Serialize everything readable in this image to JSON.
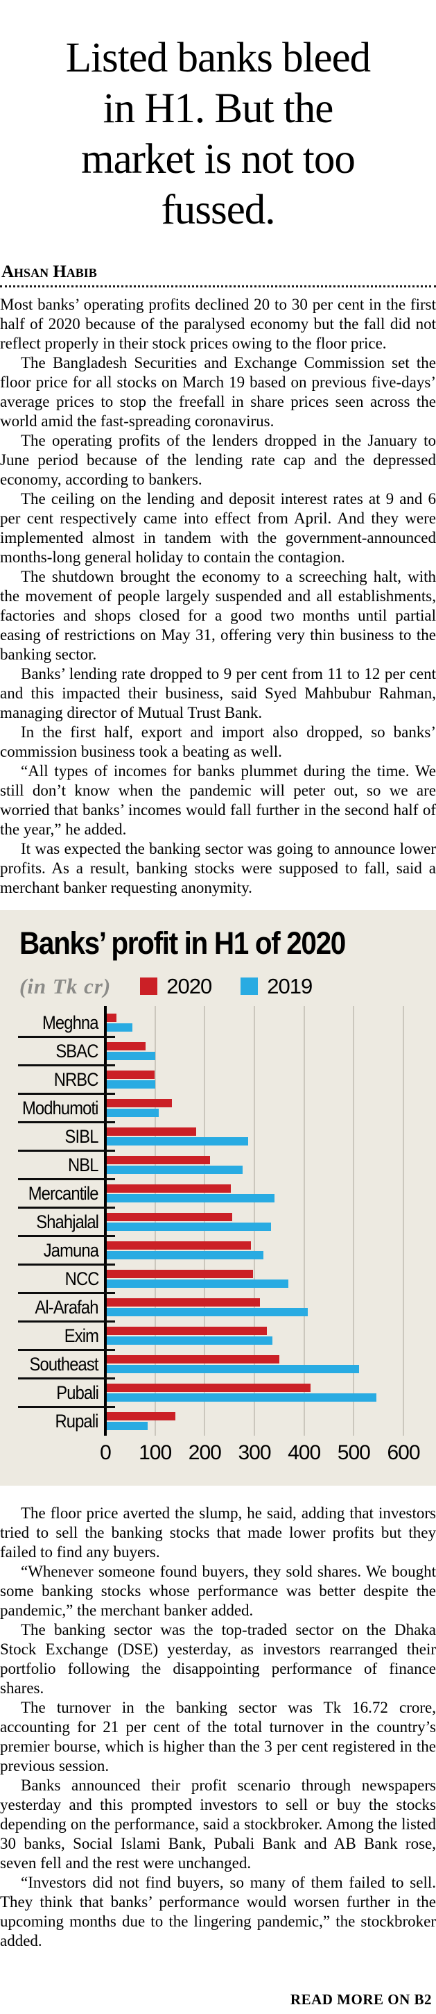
{
  "article": {
    "headline_lines": [
      "Listed banks bleed",
      "in H1. But the",
      "market is not too",
      "fussed."
    ],
    "byline": "Ahsan Habib",
    "paragraphs_before_chart": [
      "Most banks’ operating profits declined 20 to 30 per cent in the first half of 2020 because of the paralysed economy but the fall did not reflect properly in their stock prices owing to the floor price.",
      "The Bangladesh Securities and Exchange Commission set the floor price for all stocks on March 19 based on previous five-days’ average prices to stop the freefall in share prices seen across the world amid the fast-spreading coronavirus.",
      "The operating profits of the lenders dropped in the January to June period because of the lending rate cap and the depressed economy, according to bankers.",
      "The ceiling on the lending and deposit interest rates at 9 and 6 per cent respectively came into effect from April. And they were implemented almost in tandem with the government-announced months-long general holiday to contain the contagion.",
      "The shutdown brought the economy to a screeching halt, with the movement of people largely suspended and all establishments, factories and shops closed for a good two months until partial easing of restrictions on May 31, offering very thin business to the banking sector.",
      "Banks’ lending rate dropped to 9 per cent from 11 to 12 per cent and this impacted their business, said Syed Mahbubur Rahman, managing director of Mutual Trust Bank.",
      "In the first half, export and import also dropped, so banks’ commission business took a beating as well.",
      "“All types of incomes for banks plummet during the time. We still don’t know when the pandemic will peter out, so we are worried that banks’ incomes would fall further in the second half of the year,” he added.",
      "It was expected the banking sector was going to announce lower profits. As a result, banking stocks were supposed to fall, said a merchant banker requesting anonymity."
    ],
    "paragraphs_after_chart": [
      "The floor price averted the slump, he said, adding that investors tried to sell the banking stocks that made lower profits but they failed to find any buyers.",
      "“Whenever someone found buyers, they sold shares. We bought some banking stocks whose performance was better despite the pandemic,” the merchant banker added.",
      "The banking sector was the top-traded sector on the Dhaka Stock Exchange (DSE) yesterday, as investors rearranged their portfolio following the disappointing performance of finance shares.",
      "The turnover in the banking sector was Tk 16.72 crore, accounting for 21 per cent of the total turnover in the country’s premier bourse, which is higher than the 3 per cent registered in the previous session.",
      "Banks announced their profit scenario through newspapers yesterday and this prompted investors to sell or buy the stocks depending on the performance, said a stockbroker. Among the listed 30 banks, Social Islami Bank, Pubali Bank and AB Bank rose, seven fell and the rest were unchanged.",
      "“Investors did not find buyers, so many of them failed to sell. They think that banks’ performance would worsen further in the upcoming months due to the lingering pandemic,” the stockbroker added."
    ],
    "read_more": "READ MORE ON B2"
  },
  "chart": {
    "title": "Banks’ profit in H1 of 2020",
    "unit_label": "(in Tk cr)",
    "panel_bg": "#edeae1",
    "grid_color": "#cbc7bd"
  },
  "chart_data": {
    "type": "bar",
    "orientation": "horizontal",
    "title": "Banks’ profit in H1 of 2020",
    "unit": "Tk cr",
    "categories": [
      "Meghna",
      "SBAC",
      "NRBC",
      "Modhumoti",
      "SIBL",
      "NBL",
      "Mercantile",
      "Shahjalal",
      "Jamuna",
      "NCC",
      "Al-Arafah",
      "Exim",
      "Southeast",
      "Pubali",
      "Rupali"
    ],
    "series": [
      {
        "name": "2020",
        "color": "#cb2026",
        "values": [
          20,
          78,
          96,
          131,
          180,
          208,
          250,
          253,
          290,
          295,
          309,
          322,
          347,
          410,
          138
        ]
      },
      {
        "name": "2019",
        "color": "#29abe2",
        "values": [
          52,
          97,
          98,
          104,
          284,
          273,
          337,
          330,
          315,
          365,
          404,
          334,
          508,
          543,
          83
        ]
      }
    ],
    "xlim": [
      0,
      600
    ],
    "xticks": [
      0,
      100,
      200,
      300,
      400,
      500,
      600
    ],
    "grid": true,
    "legend_position": "top"
  }
}
